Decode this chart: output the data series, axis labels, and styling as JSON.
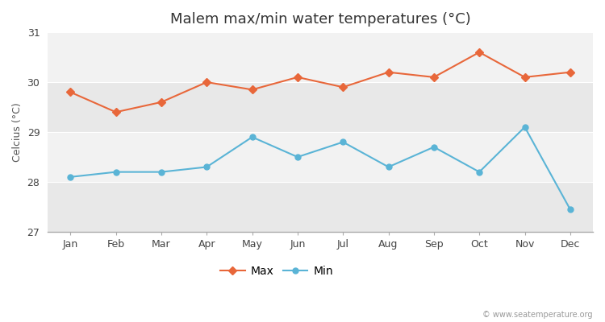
{
  "title": "Malem max/min water temperatures (°C)",
  "ylabel": "Celcius (°C)",
  "months": [
    "Jan",
    "Feb",
    "Mar",
    "Apr",
    "May",
    "Jun",
    "Jul",
    "Aug",
    "Sep",
    "Oct",
    "Nov",
    "Dec"
  ],
  "max_temps": [
    29.8,
    29.4,
    29.6,
    30.0,
    29.85,
    30.1,
    29.9,
    30.2,
    30.1,
    30.6,
    30.1,
    30.2
  ],
  "min_temps": [
    28.1,
    28.2,
    28.2,
    28.3,
    28.9,
    28.5,
    28.8,
    28.3,
    28.7,
    28.2,
    29.1,
    27.45
  ],
  "max_color": "#e8673a",
  "min_color": "#5ab4d6",
  "fig_bg_color": "#ffffff",
  "band_colors": [
    "#e8e8e8",
    "#f2f2f2",
    "#e8e8e8",
    "#f2f2f2"
  ],
  "ylim_min": 27,
  "ylim_max": 31,
  "yticks": [
    27,
    28,
    29,
    30,
    31
  ],
  "watermark": "© www.seatemperature.org",
  "title_fontsize": 13,
  "label_fontsize": 9,
  "tick_fontsize": 9,
  "legend_fontsize": 10
}
